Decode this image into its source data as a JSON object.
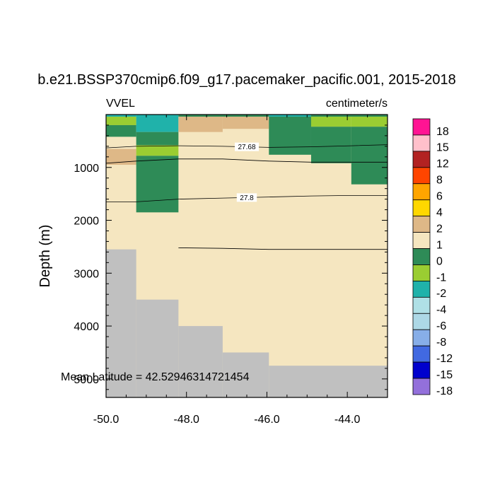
{
  "chart_data": {
    "type": "heatmap",
    "title": "b.e21.BSSP370cmip6.f09_g17.pacemaker_pacific.001, 2015-2018",
    "variable_label": "VVEL",
    "units_label": "centimeter/s",
    "ylabel": "Depth (m)",
    "xlabel": "",
    "xlim": [
      -50.0,
      -43.0
    ],
    "ylim": [
      5350,
      0
    ],
    "x_ticks": [
      -50.0,
      -48.0,
      -46.0,
      -44.0
    ],
    "x_tick_labels": [
      "-50.0",
      "-48.0",
      "-46.0",
      "-44.0"
    ],
    "y_ticks": [
      1000,
      2000,
      3000,
      4000,
      5000
    ],
    "y_tick_labels": [
      "1000",
      "2000",
      "3000",
      "4000",
      "5000"
    ],
    "annotation": "Mean Latitude = 42.52946314721454",
    "colorbar": {
      "labels": [
        "18",
        "15",
        "12",
        "8",
        "6",
        "4",
        "2",
        "1",
        "0",
        "-1",
        "-2",
        "-4",
        "-6",
        "-8",
        "-12",
        "-15",
        "-18"
      ],
      "colors": [
        "#ff1493",
        "#ffc0cb",
        "#b22222",
        "#ff4500",
        "#ffa500",
        "#ffd700",
        "#deb887",
        "#f5e6c0",
        "#2e8b57",
        "#9acd32",
        "#20b2aa",
        "#afe0e6",
        "#add8e6",
        "#87aee8",
        "#4169e1",
        "#0000cd",
        "#9370db"
      ]
    },
    "background_color": "#f5e6c0",
    "land_color": "#c0c0c0",
    "cells": [
      {
        "x0": -50.0,
        "x1": -49.25,
        "y0": 0,
        "y1": 40,
        "color": "#20b2aa"
      },
      {
        "x0": -49.25,
        "x1": -48.2,
        "y0": 0,
        "y1": 40,
        "color": "#20b2aa"
      },
      {
        "x0": -48.2,
        "x1": -45.95,
        "y0": 0,
        "y1": 40,
        "color": "#2e8b57"
      },
      {
        "x0": -45.95,
        "x1": -44.9,
        "y0": 0,
        "y1": 40,
        "color": "#20b2aa"
      },
      {
        "x0": -44.9,
        "x1": -43.0,
        "y0": 0,
        "y1": 40,
        "color": "#2e8b57"
      },
      {
        "x0": -50.0,
        "x1": -49.25,
        "y0": 40,
        "y1": 200,
        "color": "#9acd32"
      },
      {
        "x0": -50.0,
        "x1": -49.25,
        "y0": 200,
        "y1": 420,
        "color": "#2e8b57"
      },
      {
        "x0": -50.0,
        "x1": -49.25,
        "y0": 650,
        "y1": 950,
        "color": "#deb887"
      },
      {
        "x0": -49.25,
        "x1": -48.2,
        "y0": 40,
        "y1": 330,
        "color": "#20b2aa"
      },
      {
        "x0": -49.25,
        "x1": -48.2,
        "y0": 330,
        "y1": 580,
        "color": "#2e8b57"
      },
      {
        "x0": -49.25,
        "x1": -48.2,
        "y0": 580,
        "y1": 780,
        "color": "#9acd32"
      },
      {
        "x0": -49.25,
        "x1": -48.2,
        "y0": 780,
        "y1": 1850,
        "color": "#2e8b57"
      },
      {
        "x0": -48.2,
        "x1": -47.1,
        "y0": 40,
        "y1": 330,
        "color": "#deb887"
      },
      {
        "x0": -47.1,
        "x1": -45.95,
        "y0": 40,
        "y1": 270,
        "color": "#deb887"
      },
      {
        "x0": -45.95,
        "x1": -44.9,
        "y0": 40,
        "y1": 760,
        "color": "#2e8b57"
      },
      {
        "x0": -44.9,
        "x1": -43.9,
        "y0": 40,
        "y1": 230,
        "color": "#9acd32"
      },
      {
        "x0": -44.9,
        "x1": -43.9,
        "y0": 230,
        "y1": 920,
        "color": "#2e8b57"
      },
      {
        "x0": -43.9,
        "x1": -43.0,
        "y0": 40,
        "y1": 230,
        "color": "#9acd32"
      },
      {
        "x0": -43.9,
        "x1": -43.0,
        "y0": 230,
        "y1": 1320,
        "color": "#2e8b57"
      }
    ],
    "bathymetry": [
      {
        "x0": -50.0,
        "x1": -49.25,
        "depth": 2550
      },
      {
        "x0": -49.25,
        "x1": -48.2,
        "depth": 3500
      },
      {
        "x0": -48.2,
        "x1": -47.1,
        "depth": 4000
      },
      {
        "x0": -47.1,
        "x1": -45.95,
        "depth": 4500
      },
      {
        "x0": -45.95,
        "x1": -43.0,
        "depth": 4750
      }
    ],
    "contours": [
      {
        "label": "27.68",
        "label_x": -46.5,
        "points": [
          [
            -50.0,
            630
          ],
          [
            -49.25,
            600
          ],
          [
            -48.2,
            590
          ],
          [
            -47.1,
            600
          ],
          [
            -45.95,
            620
          ],
          [
            -44.9,
            610
          ],
          [
            -43.9,
            590
          ],
          [
            -43.0,
            570
          ]
        ]
      },
      {
        "label": "",
        "label_x": null,
        "points": [
          [
            -50.0,
            920
          ],
          [
            -49.25,
            880
          ],
          [
            -48.2,
            840
          ],
          [
            -47.1,
            840
          ],
          [
            -45.95,
            880
          ],
          [
            -44.9,
            900
          ],
          [
            -43.9,
            900
          ],
          [
            -43.0,
            900
          ]
        ]
      },
      {
        "label": "27.8",
        "label_x": -46.5,
        "points": [
          [
            -50.0,
            1650
          ],
          [
            -49.25,
            1650
          ],
          [
            -48.2,
            1600
          ],
          [
            -47.1,
            1580
          ],
          [
            -45.95,
            1560
          ],
          [
            -44.9,
            1540
          ],
          [
            -43.9,
            1530
          ],
          [
            -43.0,
            1530
          ]
        ]
      },
      {
        "label": "",
        "label_x": null,
        "points": [
          [
            -48.2,
            2520
          ],
          [
            -47.1,
            2530
          ],
          [
            -45.95,
            2550
          ],
          [
            -44.9,
            2550
          ],
          [
            -43.9,
            2550
          ],
          [
            -43.0,
            2550
          ]
        ]
      }
    ]
  }
}
